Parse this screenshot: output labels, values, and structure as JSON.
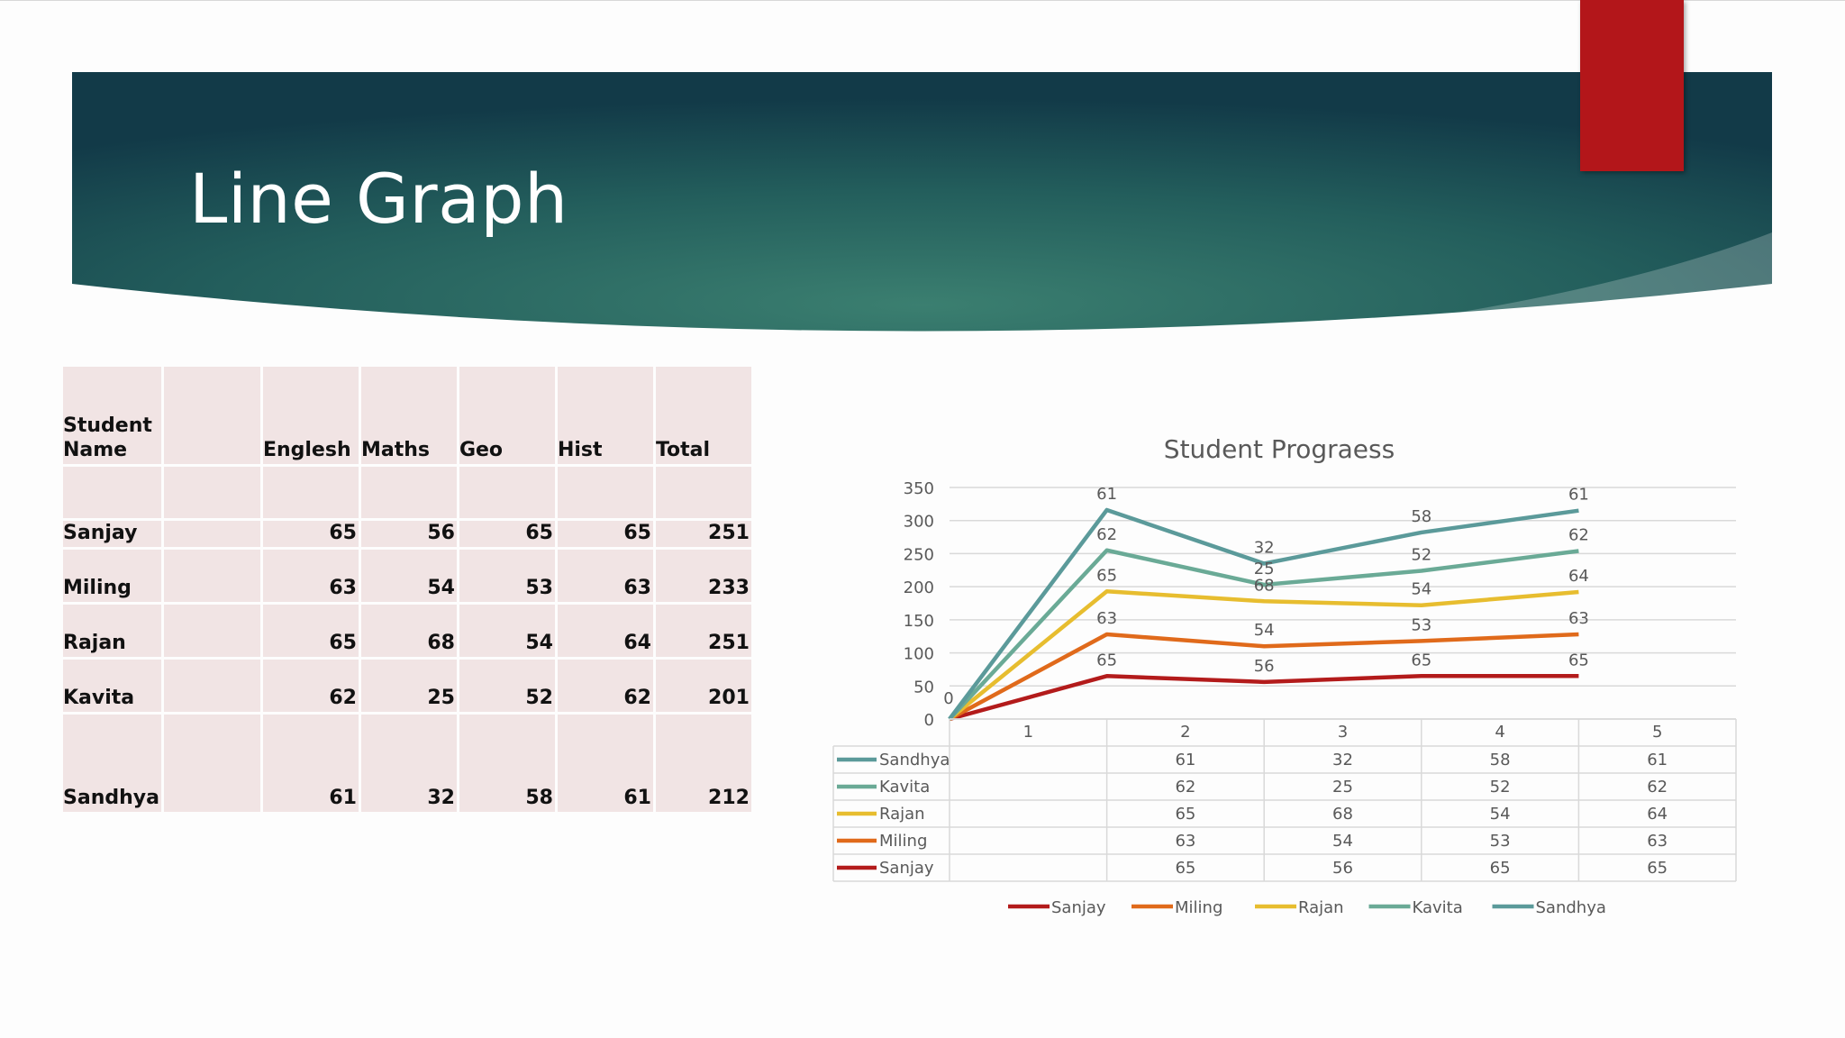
{
  "slide": {
    "title": "Line Graph"
  },
  "table": {
    "headers": [
      "Student\nName",
      "",
      "Englesh",
      "Maths",
      "Geo",
      "Hist",
      "Total"
    ],
    "rows": [
      {
        "name": "Sanjay",
        "values": [
          "65",
          "56",
          "65",
          "65",
          "251"
        ]
      },
      {
        "name": "Miling",
        "values": [
          "63",
          "54",
          "53",
          "63",
          "233"
        ]
      },
      {
        "name": "Rajan",
        "values": [
          "65",
          "68",
          "54",
          "64",
          "251"
        ]
      },
      {
        "name": "Kavita",
        "values": [
          "62",
          "25",
          "52",
          "62",
          "201"
        ]
      },
      {
        "name": "Sandhya",
        "values": [
          "61",
          "32",
          "58",
          "61",
          "212"
        ]
      }
    ]
  },
  "chart_data": {
    "type": "line",
    "stacked": true,
    "title": "Student Prograess",
    "x": [
      "1",
      "2",
      "3",
      "4",
      "5"
    ],
    "ylim": [
      0,
      350
    ],
    "yticks": [
      0,
      50,
      100,
      150,
      200,
      250,
      300,
      350
    ],
    "grid": true,
    "legend": "bottom",
    "data_table": true,
    "series": [
      {
        "name": "Sanjay",
        "color": "#b31b1b",
        "values": [
          0,
          65,
          56,
          65,
          65
        ]
      },
      {
        "name": "Miling",
        "color": "#e06a1b",
        "values": [
          0,
          63,
          54,
          53,
          63
        ]
      },
      {
        "name": "Rajan",
        "color": "#e7bd2f",
        "values": [
          0,
          65,
          68,
          54,
          64
        ]
      },
      {
        "name": "Kavita",
        "color": "#6aaa96",
        "values": [
          0,
          62,
          25,
          52,
          62
        ]
      },
      {
        "name": "Sandhya",
        "color": "#5b9a9a",
        "values": [
          0,
          61,
          32,
          58,
          61
        ]
      }
    ],
    "point_labels": [
      "0",
      "",
      "",
      "",
      ""
    ]
  }
}
